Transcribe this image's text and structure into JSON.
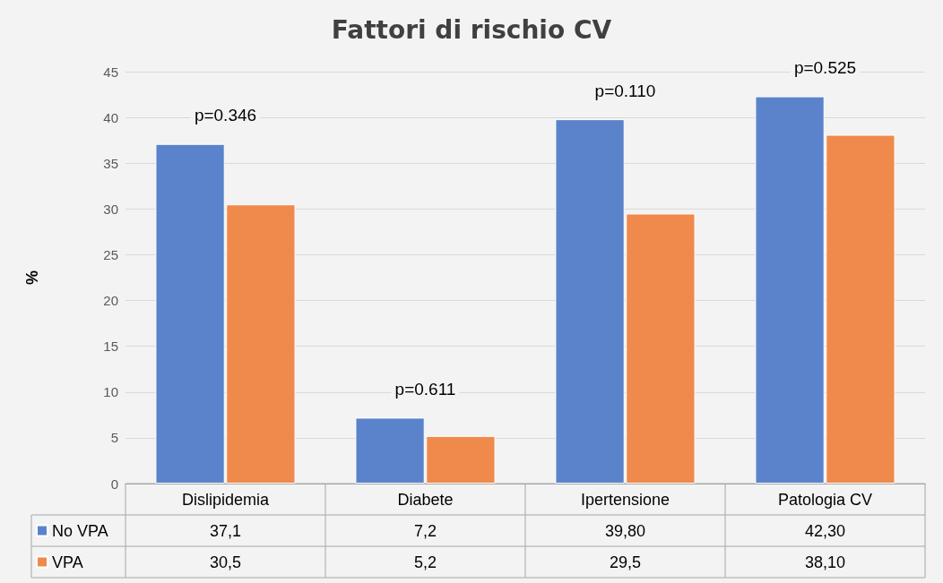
{
  "chart_data": {
    "type": "bar",
    "title": "Fattori di rischio CV",
    "ylabel": "%",
    "categories": [
      "Dislipidemia",
      "Diabete",
      "Ipertensione",
      "Patologia CV"
    ],
    "series": [
      {
        "name": "No VPA",
        "color": "#5a83cb",
        "values": [
          37.1,
          7.2,
          39.8,
          42.3
        ],
        "value_labels": [
          "37,1",
          "7,2",
          "39,80",
          "42,30"
        ]
      },
      {
        "name": "VPA",
        "color": "#ef8a4c",
        "values": [
          30.5,
          5.2,
          29.5,
          38.1
        ],
        "value_labels": [
          "30,5",
          "5,2",
          "29,5",
          "38,10"
        ]
      }
    ],
    "ylim": [
      0,
      45
    ],
    "yticks": [
      0,
      5,
      10,
      15,
      20,
      25,
      30,
      35,
      40,
      45
    ],
    "grid": "y",
    "legend": "bottom left",
    "annotations": [
      "p=0.346",
      "p=0.611",
      "p=0.110",
      "p=0.525"
    ]
  }
}
